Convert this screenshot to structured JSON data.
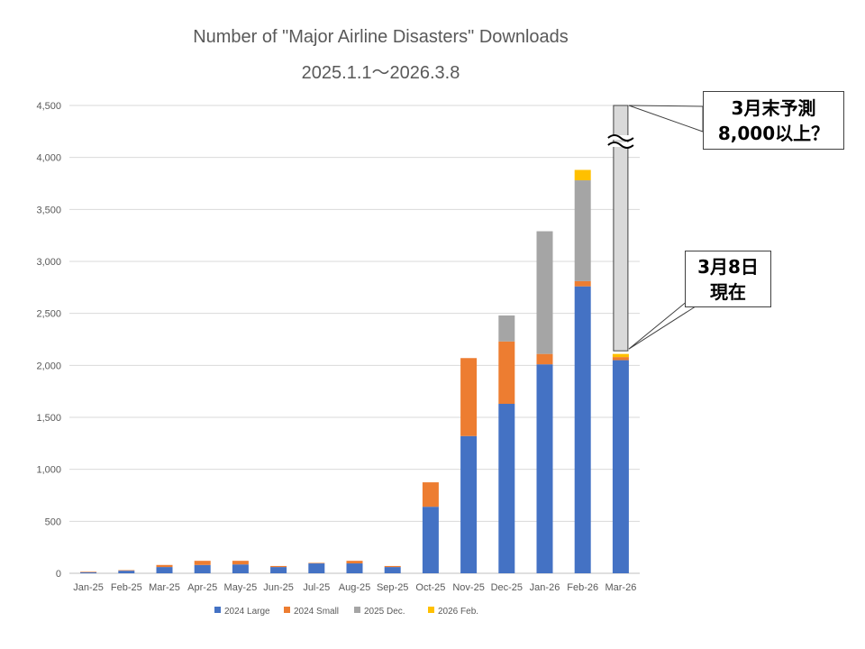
{
  "chart_data": {
    "type": "bar",
    "stacked": true,
    "title": "Number of \"Major Airline Disasters\" Downloads",
    "subtitle": "2025.1.1～2026.3.8",
    "xlabel": "",
    "ylabel": "",
    "ylim": [
      0,
      4500
    ],
    "yticks": [
      0,
      500,
      1000,
      1500,
      2000,
      2500,
      3000,
      3500,
      4000,
      4500
    ],
    "ytick_labels": [
      "0",
      "500",
      "1,000",
      "1,500",
      "2,000",
      "2,500",
      "3,000",
      "3,500",
      "4,000",
      "4,500"
    ],
    "grid": true,
    "legend": "bottom",
    "categories": [
      "Jan-25",
      "Feb-25",
      "Mar-25",
      "Apr-25",
      "May-25",
      "Jun-25",
      "Jul-25",
      "Aug-25",
      "Sep-25",
      "Oct-25",
      "Nov-25",
      "Dec-25",
      "Jan-26",
      "Feb-26",
      "Mar-26"
    ],
    "series": [
      {
        "name": "2024 Large",
        "color": "#4472C4",
        "values": [
          10,
          25,
          60,
          80,
          85,
          60,
          95,
          95,
          60,
          640,
          1320,
          1630,
          2010,
          2760,
          2050
        ]
      },
      {
        "name": "2024 Small",
        "color": "#ED7D31",
        "values": [
          5,
          5,
          20,
          40,
          35,
          10,
          5,
          25,
          10,
          235,
          750,
          600,
          100,
          50,
          30
        ]
      },
      {
        "name": "2025 Dec.",
        "color": "#A5A5A5",
        "values": [
          0,
          0,
          0,
          0,
          0,
          0,
          0,
          0,
          0,
          0,
          0,
          250,
          1180,
          970,
          0
        ]
      },
      {
        "name": "2026 Feb.",
        "color": "#FFC000",
        "values": [
          0,
          0,
          0,
          0,
          0,
          0,
          0,
          0,
          0,
          0,
          0,
          0,
          0,
          100,
          30
        ]
      }
    ],
    "annotations": {
      "forecast_bar": {
        "category": "Mar-26",
        "from": 2140,
        "to": 4500,
        "color": "#D9D9D9",
        "axis_break": true
      },
      "callout_forecast": {
        "lines": [
          "3月末予測",
          "8,000以上？"
        ]
      },
      "callout_current": {
        "lines": [
          "3月8日",
          "現在"
        ]
      }
    }
  }
}
